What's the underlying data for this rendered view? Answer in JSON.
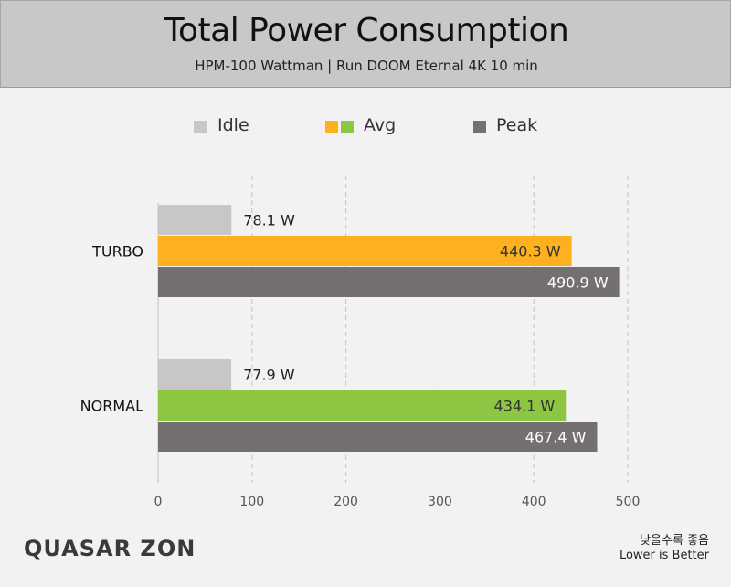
{
  "chart_data": {
    "type": "bar",
    "orientation": "horizontal",
    "title": "Total Power Consumption",
    "subtitle": "HPM-100 Wattman  |  Run DOOM Eternal 4K 10 min",
    "categories": [
      "TURBO",
      "NORMAL"
    ],
    "series": [
      {
        "name": "Idle",
        "values": [
          78.1,
          77.9
        ],
        "labels": [
          "78.1 W",
          "77.9 W"
        ],
        "colors": [
          "#c8c6c6",
          "#c8c6c6"
        ]
      },
      {
        "name": "Avg",
        "values": [
          440.3,
          434.1
        ],
        "labels": [
          "440.3 W",
          "434.1 W"
        ],
        "colors": [
          "#fdb11e",
          "#8dc641"
        ]
      },
      {
        "name": "Peak",
        "values": [
          490.9,
          467.4
        ],
        "labels": [
          "490.9 W",
          "467.4 W"
        ],
        "colors": [
          "#757070",
          "#757070"
        ]
      }
    ],
    "legend": [
      {
        "label": "Idle",
        "colors": [
          "#c8c6c6"
        ]
      },
      {
        "label": "Avg",
        "colors": [
          "#fdb11e",
          "#8dc641"
        ]
      },
      {
        "label": "Peak",
        "colors": [
          "#757070"
        ]
      }
    ],
    "legend_position": "top",
    "xlim": [
      0,
      500
    ],
    "xticks": [
      0,
      100,
      200,
      300,
      400,
      500
    ],
    "grid": "vertical-dashed"
  },
  "footer": {
    "brand": "QUASAR ZONE",
    "note_korean": "낮을수록 좋음",
    "note_english": "Lower is Better"
  },
  "colors": {
    "header_bg": "#c8c8c8",
    "background": "#f2f2f2",
    "grid": "#c4c4c4",
    "label_dark": "#222222",
    "label_light": "#ffffff"
  }
}
